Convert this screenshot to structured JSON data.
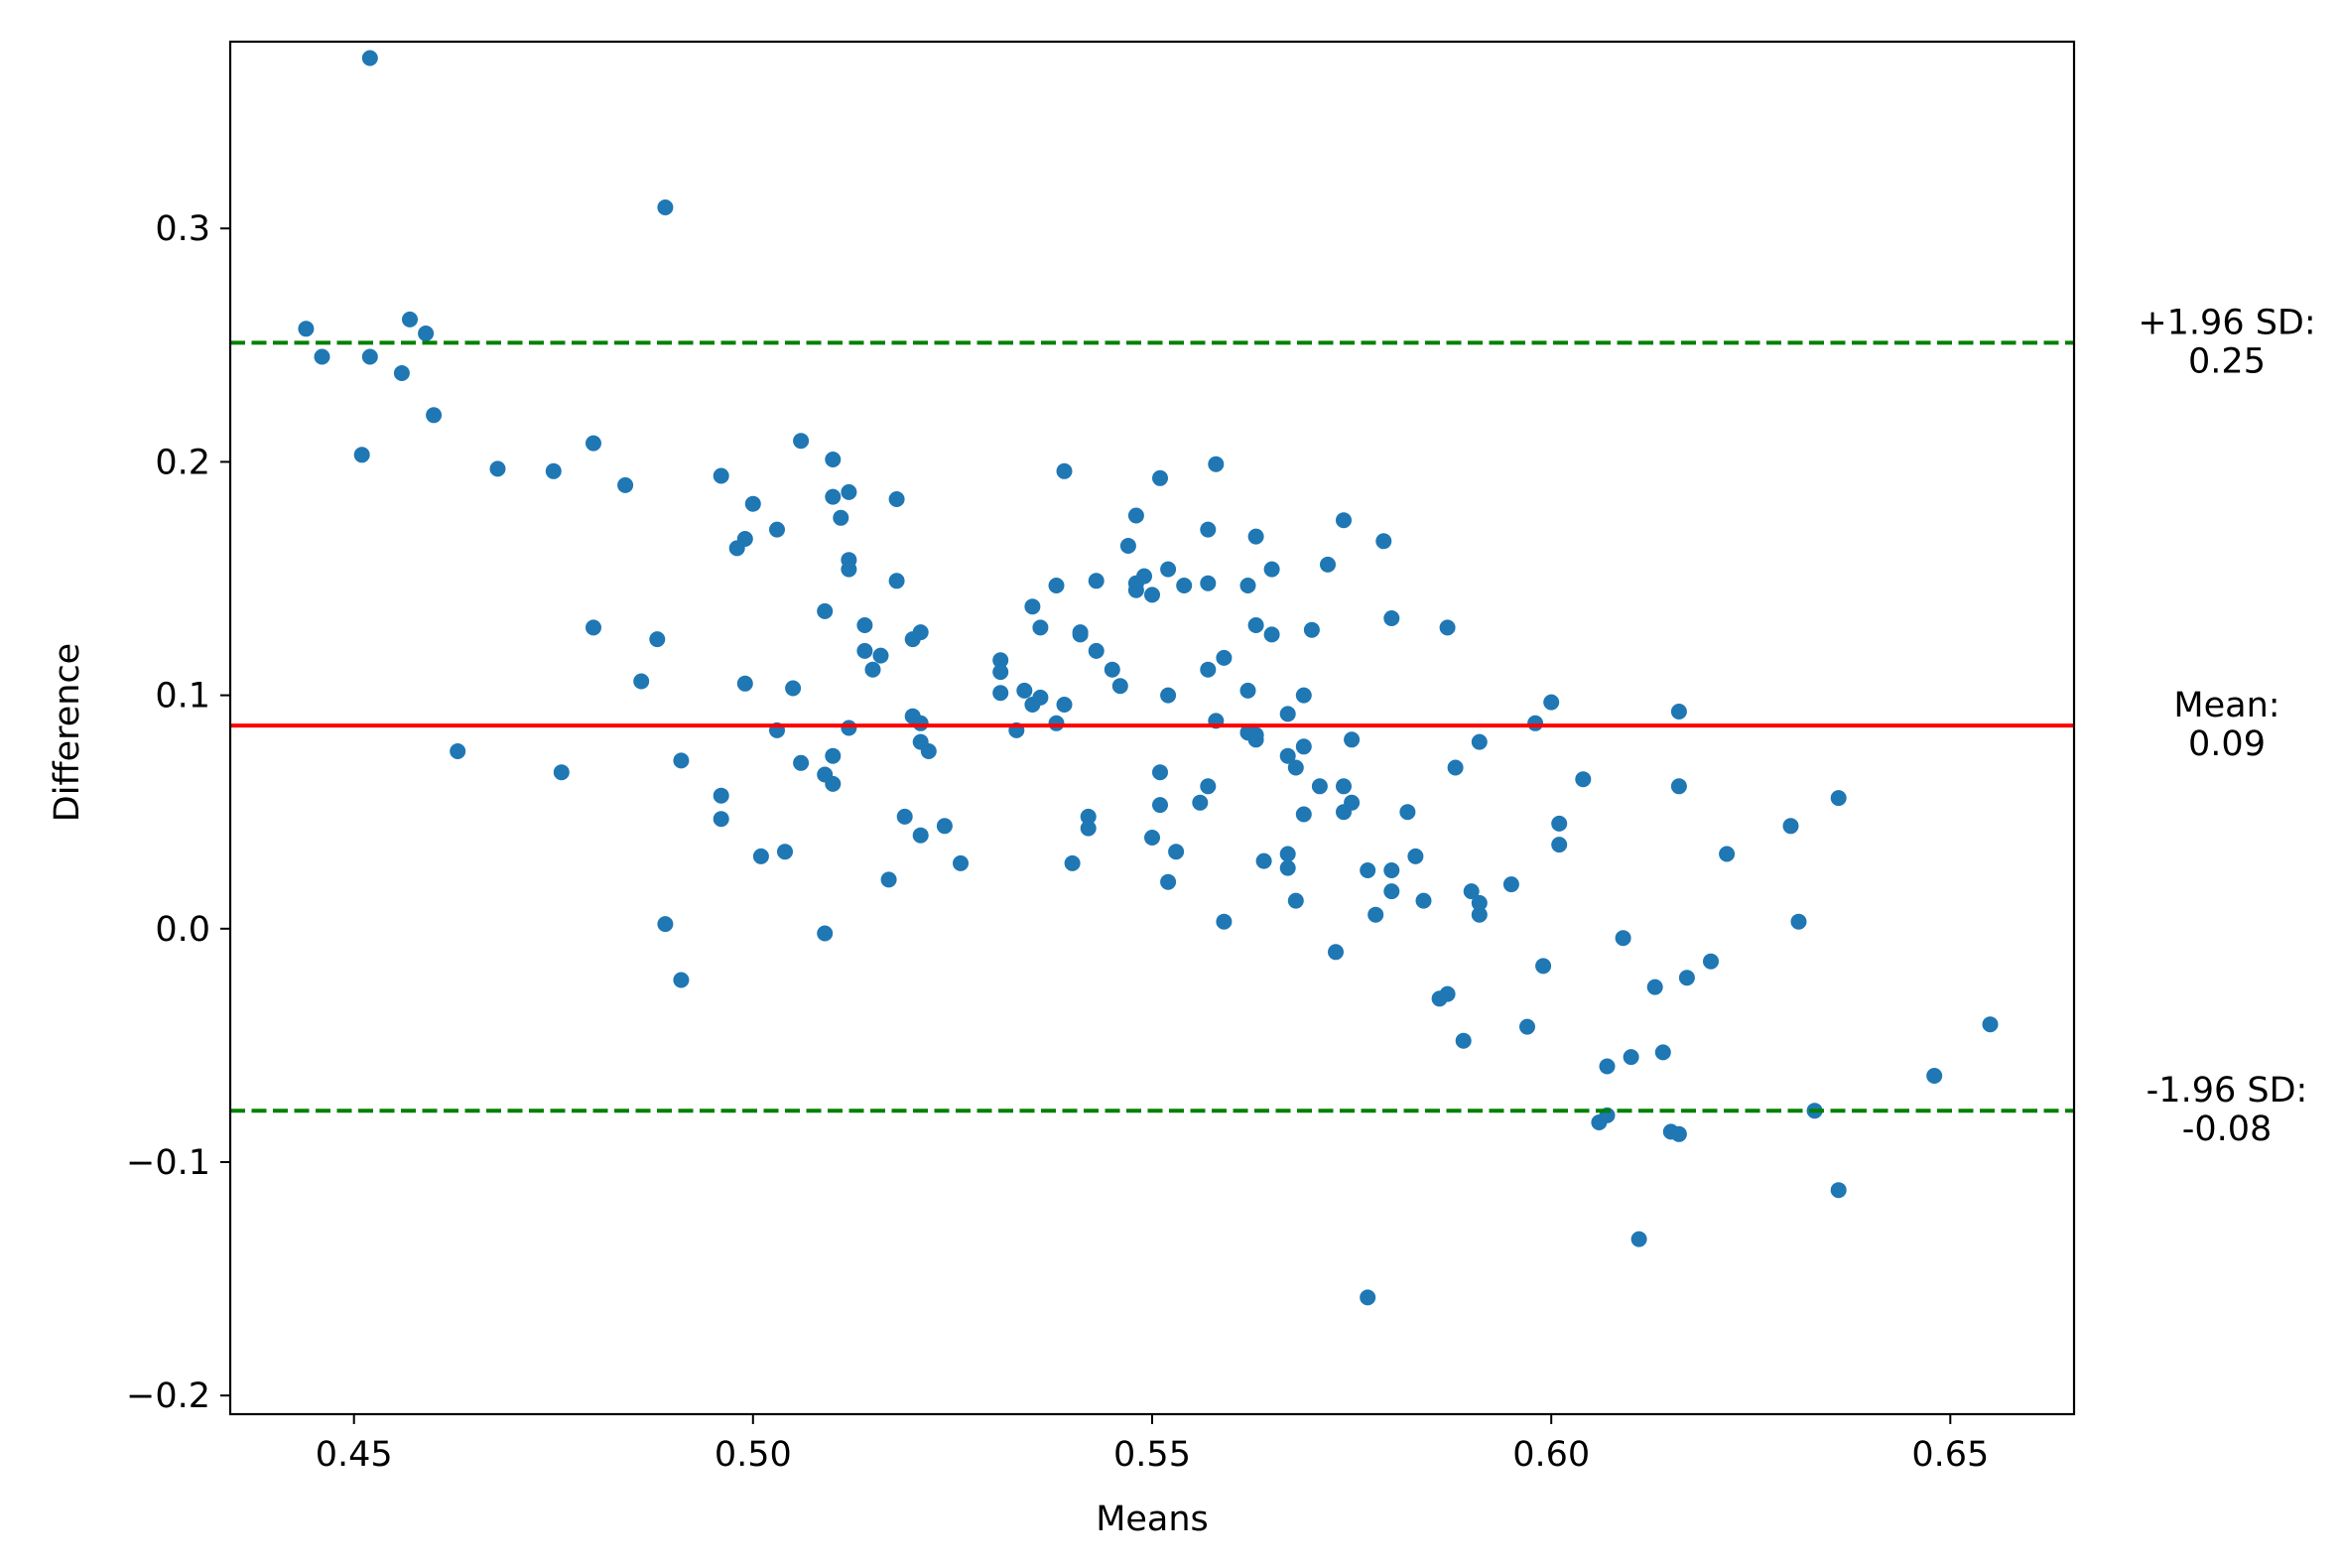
{
  "chart_data": {
    "type": "scatter",
    "title": "",
    "xlabel": "Means",
    "ylabel": "Difference",
    "xlim": [
      0.4345,
      0.6655
    ],
    "ylim": [
      -0.208,
      0.38
    ],
    "x_ticks": [
      {
        "value": 0.45,
        "label": "0.45"
      },
      {
        "value": 0.5,
        "label": "0.50"
      },
      {
        "value": 0.55,
        "label": "0.55"
      },
      {
        "value": 0.6,
        "label": "0.60"
      },
      {
        "value": 0.65,
        "label": "0.65"
      }
    ],
    "y_ticks": [
      {
        "value": -0.2,
        "label": "−0.2"
      },
      {
        "value": -0.1,
        "label": "−0.1"
      },
      {
        "value": 0.0,
        "label": "0.0"
      },
      {
        "value": 0.1,
        "label": "0.1"
      },
      {
        "value": 0.2,
        "label": "0.2"
      },
      {
        "value": 0.3,
        "label": "0.3"
      }
    ],
    "grid": false,
    "legend": "none",
    "colors": {
      "points": "#1f77b4",
      "mean_line": "#ff0000",
      "limit_lines": "#008000"
    },
    "reference_lines": [
      {
        "name": "upper-limit",
        "y": 0.251,
        "style": "dashed",
        "color": "#008000",
        "label_line1": "+1.96 SD:",
        "label_line2": "0.25"
      },
      {
        "name": "mean",
        "y": 0.087,
        "style": "solid",
        "color": "#ff0000",
        "label_line1": "Mean:",
        "label_line2": "0.09"
      },
      {
        "name": "lower-limit",
        "y": -0.078,
        "style": "dashed",
        "color": "#008000",
        "label_line1": "-1.96 SD:",
        "label_line2": "-0.08"
      }
    ],
    "points": [
      [
        0.444,
        0.257
      ],
      [
        0.446,
        0.245
      ],
      [
        0.451,
        0.203
      ],
      [
        0.452,
        0.373
      ],
      [
        0.452,
        0.245
      ],
      [
        0.456,
        0.238
      ],
      [
        0.457,
        0.261
      ],
      [
        0.459,
        0.255
      ],
      [
        0.46,
        0.22
      ],
      [
        0.463,
        0.076
      ],
      [
        0.468,
        0.197
      ],
      [
        0.475,
        0.196
      ],
      [
        0.476,
        0.067
      ],
      [
        0.48,
        0.208
      ],
      [
        0.48,
        0.129
      ],
      [
        0.484,
        0.19
      ],
      [
        0.486,
        0.106
      ],
      [
        0.488,
        0.124
      ],
      [
        0.489,
        0.309
      ],
      [
        0.489,
        0.002
      ],
      [
        0.491,
        -0.022
      ],
      [
        0.491,
        0.072
      ],
      [
        0.496,
        0.194
      ],
      [
        0.496,
        0.057
      ],
      [
        0.496,
        0.047
      ],
      [
        0.498,
        0.163
      ],
      [
        0.499,
        0.167
      ],
      [
        0.499,
        0.105
      ],
      [
        0.5,
        0.182
      ],
      [
        0.501,
        0.031
      ],
      [
        0.503,
        0.171
      ],
      [
        0.503,
        0.085
      ],
      [
        0.504,
        0.033
      ],
      [
        0.505,
        0.103
      ],
      [
        0.506,
        0.209
      ],
      [
        0.506,
        0.071
      ],
      [
        0.509,
        0.136
      ],
      [
        0.509,
        0.066
      ],
      [
        0.509,
        -0.002
      ],
      [
        0.51,
        0.201
      ],
      [
        0.51,
        0.185
      ],
      [
        0.51,
        0.074
      ],
      [
        0.51,
        0.062
      ],
      [
        0.511,
        0.176
      ],
      [
        0.512,
        0.158
      ],
      [
        0.512,
        0.154
      ],
      [
        0.512,
        0.086
      ],
      [
        0.512,
        0.187
      ],
      [
        0.514,
        0.13
      ],
      [
        0.514,
        0.119
      ],
      [
        0.515,
        0.111
      ],
      [
        0.516,
        0.117
      ],
      [
        0.517,
        0.021
      ],
      [
        0.518,
        0.184
      ],
      [
        0.518,
        0.149
      ],
      [
        0.519,
        0.048
      ],
      [
        0.52,
        0.124
      ],
      [
        0.52,
        0.091
      ],
      [
        0.521,
        0.088
      ],
      [
        0.521,
        0.08
      ],
      [
        0.521,
        0.04
      ],
      [
        0.521,
        0.127
      ],
      [
        0.522,
        0.076
      ],
      [
        0.524,
        0.044
      ],
      [
        0.526,
        0.028
      ],
      [
        0.531,
        0.115
      ],
      [
        0.531,
        0.11
      ],
      [
        0.531,
        0.101
      ],
      [
        0.533,
        0.085
      ],
      [
        0.534,
        0.102
      ],
      [
        0.535,
        0.138
      ],
      [
        0.535,
        0.096
      ],
      [
        0.536,
        0.129
      ],
      [
        0.536,
        0.099
      ],
      [
        0.538,
        0.088
      ],
      [
        0.538,
        0.147
      ],
      [
        0.539,
        0.096
      ],
      [
        0.539,
        0.196
      ],
      [
        0.54,
        0.028
      ],
      [
        0.541,
        0.126
      ],
      [
        0.541,
        0.127
      ],
      [
        0.542,
        0.048
      ],
      [
        0.542,
        0.043
      ],
      [
        0.543,
        0.149
      ],
      [
        0.543,
        0.119
      ],
      [
        0.545,
        0.111
      ],
      [
        0.546,
        0.104
      ],
      [
        0.547,
        0.164
      ],
      [
        0.548,
        0.177
      ],
      [
        0.548,
        0.145
      ],
      [
        0.548,
        0.148
      ],
      [
        0.549,
        0.151
      ],
      [
        0.55,
        0.039
      ],
      [
        0.55,
        0.143
      ],
      [
        0.551,
        0.193
      ],
      [
        0.551,
        0.067
      ],
      [
        0.551,
        0.053
      ],
      [
        0.552,
        0.154
      ],
      [
        0.552,
        0.1
      ],
      [
        0.552,
        0.02
      ],
      [
        0.553,
        0.033
      ],
      [
        0.554,
        0.147
      ],
      [
        0.556,
        0.054
      ],
      [
        0.557,
        0.148
      ],
      [
        0.557,
        0.171
      ],
      [
        0.557,
        0.111
      ],
      [
        0.557,
        0.061
      ],
      [
        0.558,
        0.199
      ],
      [
        0.558,
        0.089
      ],
      [
        0.559,
        0.116
      ],
      [
        0.559,
        0.003
      ],
      [
        0.562,
        0.084
      ],
      [
        0.562,
        0.102
      ],
      [
        0.562,
        0.147
      ],
      [
        0.563,
        0.168
      ],
      [
        0.563,
        0.13
      ],
      [
        0.563,
        0.083
      ],
      [
        0.563,
        0.081
      ],
      [
        0.564,
        0.029
      ],
      [
        0.565,
        0.154
      ],
      [
        0.565,
        0.126
      ],
      [
        0.567,
        0.032
      ],
      [
        0.567,
        0.026
      ],
      [
        0.567,
        0.074
      ],
      [
        0.567,
        0.092
      ],
      [
        0.568,
        0.069
      ],
      [
        0.568,
        0.012
      ],
      [
        0.569,
        0.078
      ],
      [
        0.569,
        0.1
      ],
      [
        0.569,
        0.049
      ],
      [
        0.57,
        0.128
      ],
      [
        0.571,
        0.061
      ],
      [
        0.572,
        0.156
      ],
      [
        0.573,
        -0.01
      ],
      [
        0.574,
        0.05
      ],
      [
        0.574,
        0.175
      ],
      [
        0.574,
        0.061
      ],
      [
        0.575,
        0.054
      ],
      [
        0.575,
        0.081
      ],
      [
        0.577,
        0.025
      ],
      [
        0.577,
        -0.158
      ],
      [
        0.578,
        0.006
      ],
      [
        0.579,
        0.166
      ],
      [
        0.58,
        0.016
      ],
      [
        0.58,
        0.025
      ],
      [
        0.58,
        0.133
      ],
      [
        0.582,
        0.05
      ],
      [
        0.583,
        0.031
      ],
      [
        0.584,
        0.012
      ],
      [
        0.586,
        -0.03
      ],
      [
        0.587,
        0.129
      ],
      [
        0.587,
        -0.028
      ],
      [
        0.588,
        0.069
      ],
      [
        0.589,
        -0.048
      ],
      [
        0.59,
        0.016
      ],
      [
        0.591,
        0.08
      ],
      [
        0.591,
        0.006
      ],
      [
        0.591,
        0.011
      ],
      [
        0.595,
        0.019
      ],
      [
        0.597,
        -0.042
      ],
      [
        0.598,
        0.088
      ],
      [
        0.599,
        -0.016
      ],
      [
        0.6,
        0.097
      ],
      [
        0.601,
        0.036
      ],
      [
        0.601,
        0.045
      ],
      [
        0.604,
        0.064
      ],
      [
        0.606,
        -0.083
      ],
      [
        0.607,
        -0.059
      ],
      [
        0.607,
        -0.08
      ],
      [
        0.609,
        -0.004
      ],
      [
        0.61,
        -0.055
      ],
      [
        0.611,
        -0.133
      ],
      [
        0.613,
        -0.025
      ],
      [
        0.614,
        -0.053
      ],
      [
        0.615,
        -0.087
      ],
      [
        0.616,
        -0.088
      ],
      [
        0.616,
        0.093
      ],
      [
        0.616,
        0.061
      ],
      [
        0.617,
        -0.021
      ],
      [
        0.62,
        -0.014
      ],
      [
        0.622,
        0.032
      ],
      [
        0.63,
        0.044
      ],
      [
        0.631,
        0.003
      ],
      [
        0.633,
        -0.078
      ],
      [
        0.636,
        0.056
      ],
      [
        0.636,
        -0.112
      ],
      [
        0.648,
        -0.063
      ],
      [
        0.655,
        -0.041
      ]
    ]
  }
}
